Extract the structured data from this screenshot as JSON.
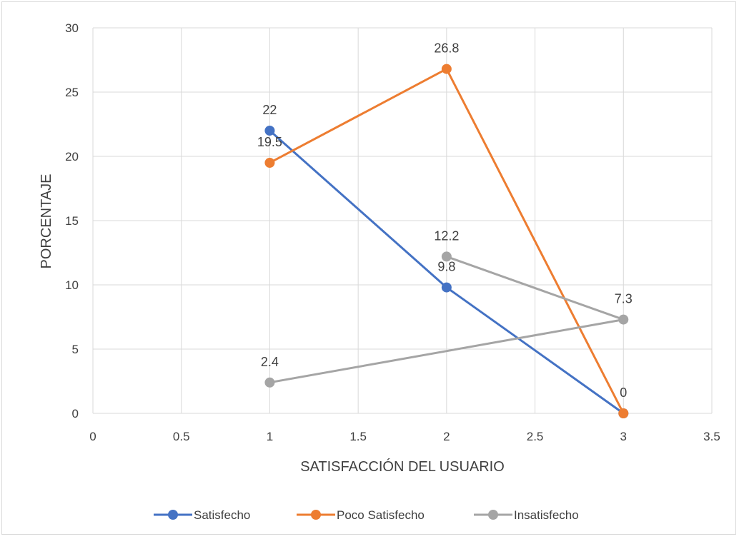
{
  "chart_data": {
    "type": "scatter",
    "title": "",
    "xlabel": "SATISFACCIÓN DEL USUARIO",
    "ylabel": "PORCENTAJE",
    "xlim": [
      0,
      3.5
    ],
    "ylim": [
      0,
      30
    ],
    "x_ticks": [
      0,
      0.5,
      1,
      1.5,
      2,
      2.5,
      3,
      3.5
    ],
    "x_tick_labels": [
      "0",
      "0.5",
      "1",
      "1.5",
      "2",
      "2.5",
      "3",
      "3.5"
    ],
    "y_ticks": [
      0,
      5,
      10,
      15,
      20,
      25,
      30
    ],
    "y_tick_labels": [
      "0",
      "5",
      "10",
      "15",
      "20",
      "25",
      "30"
    ],
    "grid": true,
    "legend_position": "bottom",
    "markers": "circle",
    "series": [
      {
        "name": "Satisfecho",
        "color": "#4472c4",
        "x": [
          1,
          2,
          3
        ],
        "y": [
          22,
          9.8,
          0
        ],
        "labels": [
          "22",
          "9.8",
          ""
        ]
      },
      {
        "name": "Poco Satisfecho",
        "color": "#ed7d31",
        "x": [
          1,
          2,
          3
        ],
        "y": [
          19.5,
          26.8,
          0
        ],
        "labels": [
          "19.5",
          "26.8",
          "0"
        ]
      },
      {
        "name": "Insatisfecho",
        "color": "#a5a5a5",
        "x": [
          1,
          3,
          2
        ],
        "y": [
          2.4,
          7.3,
          12.2
        ],
        "labels": [
          "2.4",
          "7.3",
          "12.2"
        ]
      }
    ]
  }
}
